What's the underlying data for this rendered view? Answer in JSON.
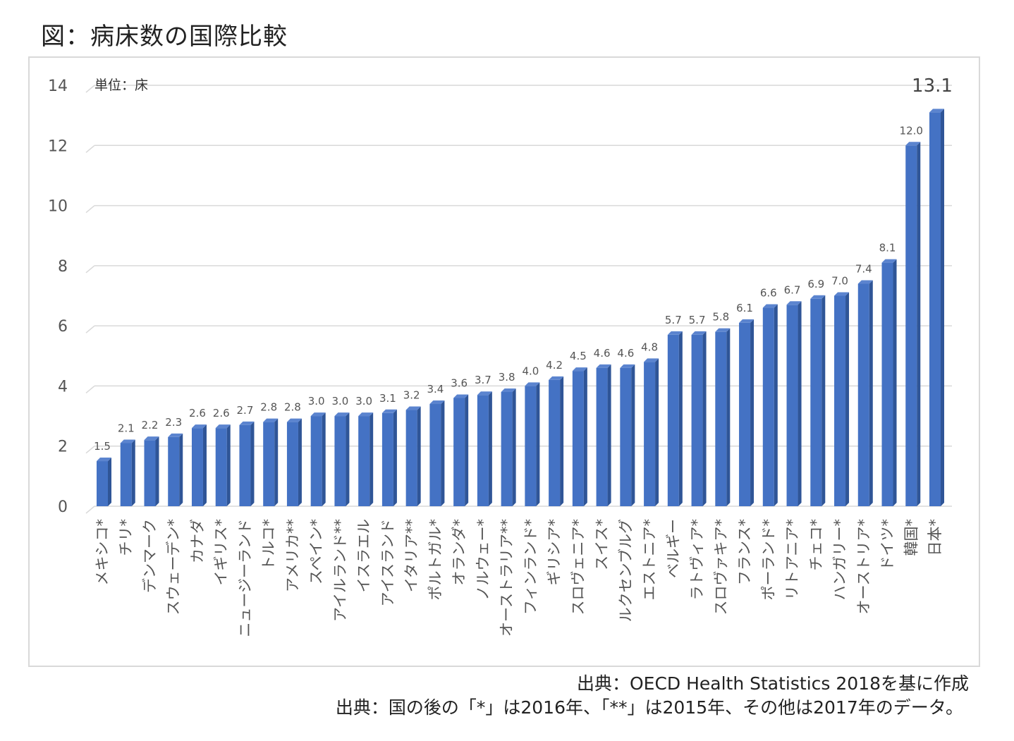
{
  "figure_title": "図：病床数の国際比較",
  "source_text": "出典：OECD Health Statistics 2018を基に作成",
  "note_text": "出典：国の後の「*」は2016年、「**」は2015年、その他は2017年のデータ。",
  "colors": {
    "bar": "#4472C4",
    "bar_side": "#2F5597",
    "bar_top": "#5B84CF",
    "grid": "#d9d9d9"
  },
  "chart_data": {
    "type": "bar",
    "title": "病床数の国際比較",
    "unit_label": "単位：床",
    "xlabel": "",
    "ylabel": "",
    "ylim": [
      0,
      14
    ],
    "yticks": [
      0,
      2,
      4,
      6,
      8,
      10,
      12,
      14
    ],
    "grid": true,
    "legend": "none",
    "categories": [
      "メキシコ*",
      "チリ*",
      "デンマーク",
      "スウェーデン*",
      "カナダ",
      "イギリス*",
      "ニュージーランド",
      "トルコ*",
      "アメリカ**",
      "スペイン*",
      "アイルランド**",
      "イスラエル",
      "アイスランド",
      "イタリア**",
      "ポルトガル*",
      "オランダ*",
      "ノルウェー*",
      "オーストラリア**",
      "フィンランド*",
      "ギリシア*",
      "スロヴェニア*",
      "スイス*",
      "ルクセンブルグ",
      "エストニア*",
      "ベルギー",
      "ラトヴィア*",
      "スロヴァキア*",
      "フランス*",
      "ポーランド*",
      "リトアニア*",
      "チェコ*",
      "ハンガリー*",
      "オーストリア*",
      "ドイツ*",
      "韓国*",
      "日本*"
    ],
    "values": [
      1.5,
      2.1,
      2.2,
      2.3,
      2.6,
      2.6,
      2.7,
      2.8,
      2.8,
      3.0,
      3.0,
      3.0,
      3.1,
      3.2,
      3.4,
      3.6,
      3.7,
      3.8,
      4.0,
      4.2,
      4.5,
      4.6,
      4.6,
      4.8,
      5.7,
      5.7,
      5.8,
      6.1,
      6.6,
      6.7,
      6.9,
      7.0,
      7.4,
      8.1,
      12.0,
      13.1
    ],
    "value_labels": [
      "1.5",
      "2.1",
      "2.2",
      "2.3",
      "2.6",
      "2.6",
      "2.7",
      "2.8",
      "2.8",
      "3.0",
      "3.0",
      "3.0",
      "3.1",
      "3.2",
      "3.4",
      "3.6",
      "3.7",
      "3.8",
      "4.0",
      "4.2",
      "4.5",
      "4.6",
      "4.6",
      "4.8",
      "5.7",
      "5.7",
      "5.8",
      "6.1",
      "6.6",
      "6.7",
      "6.9",
      "7.0",
      "7.4",
      "8.1",
      "12.0",
      "13.1"
    ],
    "highlight_index": 35
  }
}
